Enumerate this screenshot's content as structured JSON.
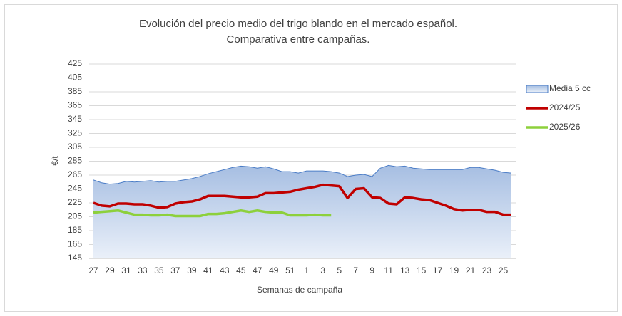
{
  "chart_data": {
    "type": "line",
    "title": [
      "Evolución del precio medio del trigo blando en el mercado español.",
      "Comparativa entre campañas."
    ],
    "y_label": "€/t",
    "x_label": "Semanas de campaña",
    "categories": [
      27,
      null,
      29,
      null,
      31,
      null,
      33,
      null,
      35,
      null,
      37,
      null,
      39,
      null,
      41,
      null,
      43,
      null,
      45,
      null,
      47,
      null,
      49,
      null,
      51,
      null,
      1,
      null,
      3,
      null,
      5,
      null,
      7,
      null,
      9,
      null,
      11,
      null,
      13,
      null,
      15,
      null,
      17,
      null,
      19,
      null,
      21,
      null,
      23,
      null,
      25,
      null
    ],
    "ylim": [
      145,
      425
    ],
    "yticks": [
      145,
      165,
      185,
      205,
      225,
      245,
      265,
      285,
      305,
      325,
      345,
      365,
      385,
      405,
      425
    ],
    "grid": true,
    "legend": "right",
    "series": [
      {
        "name": "Media 5 cc",
        "type": "area",
        "color": "#4a7cc6",
        "values": [
          258,
          254,
          252,
          253,
          256,
          255,
          256,
          257,
          255,
          256,
          256,
          258,
          260,
          263,
          267,
          270,
          273,
          276,
          278,
          277,
          275,
          277,
          274,
          270,
          270,
          268,
          271,
          271,
          271,
          270,
          268,
          263,
          265,
          266,
          263,
          275,
          279,
          277,
          278,
          275,
          274,
          273,
          273,
          273,
          273,
          273,
          276,
          276,
          274,
          272,
          269,
          268
        ]
      },
      {
        "name": "2024/25",
        "type": "line",
        "color": "#c00000",
        "values": [
          225,
          221,
          220,
          224,
          224,
          223,
          223,
          221,
          218,
          219,
          224,
          226,
          227,
          230,
          235,
          235,
          235,
          234,
          233,
          233,
          234,
          239,
          239,
          240,
          241,
          244,
          246,
          248,
          251,
          250,
          249,
          232,
          245,
          246,
          233,
          232,
          224,
          223,
          233,
          232,
          230,
          229,
          225,
          221,
          216,
          214,
          215,
          215,
          212,
          212,
          208,
          208
        ]
      },
      {
        "name": "2025/26",
        "type": "line",
        "color": "#8dd03c",
        "values": [
          211,
          212,
          213,
          214,
          211,
          208,
          208,
          207,
          207,
          208,
          206,
          206,
          206,
          206,
          209,
          209,
          210,
          212,
          214,
          212,
          214,
          212,
          211,
          211,
          207,
          207,
          207,
          208,
          207,
          207,
          null,
          null,
          null,
          null,
          null,
          null,
          null,
          null,
          null,
          null,
          null,
          null,
          null,
          null,
          null,
          null,
          null,
          null,
          null,
          null,
          null,
          null
        ]
      }
    ]
  }
}
